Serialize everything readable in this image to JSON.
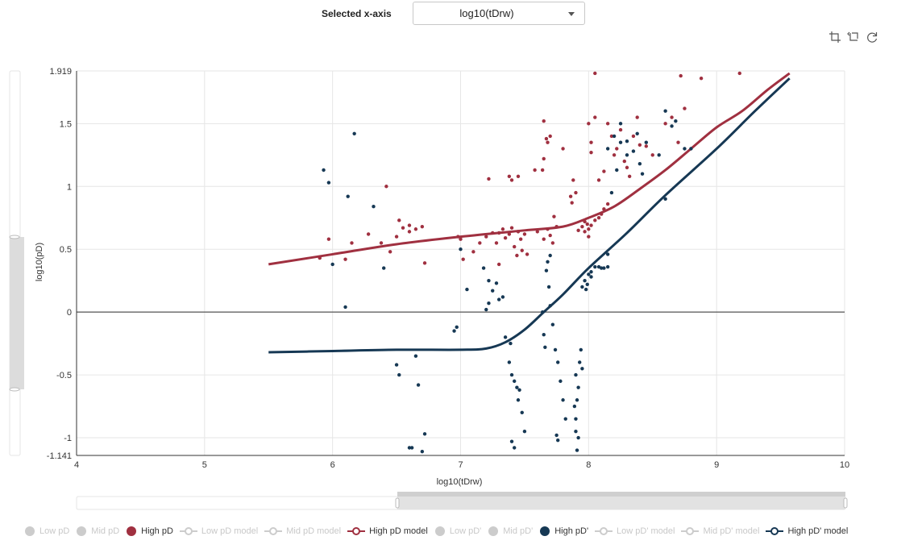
{
  "selector": {
    "label": "Selected x-axis",
    "value": "log10(tDrw)"
  },
  "toolbox": {
    "icons": [
      "data-zoom-icon",
      "zoom-reset-icon",
      "restore-icon"
    ]
  },
  "chart_data": {
    "type": "scatter",
    "xlabel": "log10(tDrw)",
    "ylabel": "log10(pD)",
    "xlim": [
      4,
      10
    ],
    "ylim": [
      -1.141,
      1.919
    ],
    "xticks": [
      "4",
      "5",
      "6",
      "7",
      "8",
      "9",
      "10"
    ],
    "yticks": [
      "1.919",
      "1.5",
      "1",
      "0.5",
      "0",
      "-0.5",
      "-1",
      "-1.141"
    ],
    "ytick_values": [
      1.919,
      1.5,
      1,
      0.5,
      0,
      -0.5,
      -1,
      -1.141
    ],
    "grid": true,
    "colors": {
      "high_pd": "#a03040",
      "high_pdp": "#163854",
      "inactive": "#cccccc"
    },
    "series": [
      {
        "name": "High pD",
        "kind": "scatter",
        "color": "#a03040",
        "points": [
          [
            5.9,
            0.43
          ],
          [
            5.97,
            0.58
          ],
          [
            6.1,
            0.42
          ],
          [
            6.15,
            0.55
          ],
          [
            6.28,
            0.62
          ],
          [
            6.38,
            0.55
          ],
          [
            6.42,
            1.0
          ],
          [
            6.45,
            0.48
          ],
          [
            6.5,
            0.6
          ],
          [
            6.52,
            0.73
          ],
          [
            6.55,
            0.67
          ],
          [
            6.6,
            0.69
          ],
          [
            6.65,
            0.66
          ],
          [
            6.7,
            0.68
          ],
          [
            6.72,
            0.39
          ],
          [
            6.6,
            0.64
          ],
          [
            6.98,
            0.6
          ],
          [
            7.0,
            0.58
          ],
          [
            7.02,
            0.42
          ],
          [
            7.1,
            0.48
          ],
          [
            7.15,
            0.55
          ],
          [
            7.2,
            0.6
          ],
          [
            7.25,
            0.63
          ],
          [
            7.22,
            1.06
          ],
          [
            7.28,
            0.55
          ],
          [
            7.3,
            0.63
          ],
          [
            7.33,
            0.66
          ],
          [
            7.35,
            0.59
          ],
          [
            7.38,
            0.62
          ],
          [
            7.4,
            0.67
          ],
          [
            7.42,
            0.52
          ],
          [
            7.45,
            0.64
          ],
          [
            7.47,
            0.58
          ],
          [
            7.5,
            0.62
          ],
          [
            7.52,
            0.46
          ],
          [
            7.4,
            1.05
          ],
          [
            7.38,
            1.08
          ],
          [
            7.44,
            0.45
          ],
          [
            7.3,
            0.38
          ],
          [
            7.48,
            0.49
          ],
          [
            7.45,
            1.08
          ],
          [
            7.6,
            0.64
          ],
          [
            7.65,
            0.58
          ],
          [
            7.68,
            0.66
          ],
          [
            7.7,
            0.61
          ],
          [
            7.72,
            0.55
          ],
          [
            7.75,
            0.68
          ],
          [
            7.65,
            1.52
          ],
          [
            7.7,
            1.4
          ],
          [
            7.68,
            1.35
          ],
          [
            7.67,
            1.38
          ],
          [
            7.73,
            0.76
          ],
          [
            7.65,
            1.22
          ],
          [
            7.64,
            1.13
          ],
          [
            7.58,
            1.13
          ],
          [
            7.8,
            1.3
          ],
          [
            7.87,
            0.87
          ],
          [
            7.9,
            0.95
          ],
          [
            7.88,
            1.05
          ],
          [
            7.86,
            0.92
          ],
          [
            7.92,
            0.65
          ],
          [
            7.95,
            0.68
          ],
          [
            7.97,
            0.72
          ],
          [
            8.0,
            0.66
          ],
          [
            8.02,
            0.69
          ],
          [
            8.05,
            0.73
          ],
          [
            8.08,
            0.75
          ],
          [
            8.1,
            0.78
          ],
          [
            8.12,
            0.82
          ],
          [
            8.15,
            0.86
          ],
          [
            8.0,
            1.5
          ],
          [
            8.02,
            1.35
          ],
          [
            8.05,
            1.55
          ],
          [
            8.08,
            1.05
          ],
          [
            8.12,
            1.12
          ],
          [
            8.15,
            1.5
          ],
          [
            8.18,
            1.4
          ],
          [
            8.2,
            1.25
          ],
          [
            8.22,
            1.3
          ],
          [
            8.25,
            1.45
          ],
          [
            8.28,
            1.2
          ],
          [
            8.3,
            1.15
          ],
          [
            8.32,
            1.08
          ],
          [
            8.35,
            1.4
          ],
          [
            8.38,
            1.55
          ],
          [
            8.4,
            1.33
          ],
          [
            8.45,
            1.32
          ],
          [
            8.5,
            1.25
          ],
          [
            8.6,
            1.5
          ],
          [
            8.65,
            1.55
          ],
          [
            8.7,
            1.35
          ],
          [
            8.75,
            1.62
          ],
          [
            8.72,
            1.88
          ],
          [
            8.88,
            1.86
          ],
          [
            9.18,
            1.9
          ],
          [
            8.05,
            1.9
          ],
          [
            8.02,
            1.27
          ],
          [
            8.0,
            0.6
          ],
          [
            7.97,
            0.64
          ],
          [
            7.99,
            0.7
          ]
        ]
      },
      {
        "name": "High pD' ",
        "kind": "scatter",
        "color": "#163854",
        "points": [
          [
            5.93,
            1.13
          ],
          [
            5.97,
            1.03
          ],
          [
            6.12,
            0.92
          ],
          [
            6.17,
            1.42
          ],
          [
            6.32,
            0.84
          ],
          [
            6.4,
            0.35
          ],
          [
            6.1,
            0.04
          ],
          [
            6.0,
            0.38
          ],
          [
            6.5,
            -0.42
          ],
          [
            6.52,
            -0.5
          ],
          [
            6.6,
            -1.08
          ],
          [
            6.62,
            -1.08
          ],
          [
            6.65,
            -0.35
          ],
          [
            6.67,
            -0.58
          ],
          [
            6.7,
            -1.11
          ],
          [
            6.72,
            -0.97
          ],
          [
            6.95,
            -0.15
          ],
          [
            6.97,
            -0.12
          ],
          [
            7.05,
            0.18
          ],
          [
            7.0,
            0.5
          ],
          [
            7.22,
            0.25
          ],
          [
            7.25,
            0.17
          ],
          [
            7.3,
            0.1
          ],
          [
            7.33,
            0.12
          ],
          [
            7.35,
            -0.2
          ],
          [
            7.38,
            -0.4
          ],
          [
            7.4,
            -0.5
          ],
          [
            7.42,
            -0.55
          ],
          [
            7.45,
            -0.7
          ],
          [
            7.48,
            -0.8
          ],
          [
            7.5,
            -0.95
          ],
          [
            7.4,
            -1.03
          ],
          [
            7.42,
            -1.08
          ],
          [
            7.2,
            0.02
          ],
          [
            7.22,
            0.07
          ],
          [
            7.18,
            0.35
          ],
          [
            7.28,
            0.23
          ],
          [
            7.44,
            -0.6
          ],
          [
            7.46,
            -0.62
          ],
          [
            7.39,
            -0.25
          ],
          [
            7.67,
            0.33
          ],
          [
            7.69,
            0.2
          ],
          [
            7.7,
            0.05
          ],
          [
            7.72,
            -0.1
          ],
          [
            7.74,
            -0.3
          ],
          [
            7.76,
            -0.4
          ],
          [
            7.78,
            -0.55
          ],
          [
            7.8,
            -0.7
          ],
          [
            7.82,
            -0.85
          ],
          [
            7.75,
            -0.98
          ],
          [
            7.76,
            -1.02
          ],
          [
            7.65,
            -0.18
          ],
          [
            7.68,
            0.4
          ],
          [
            7.7,
            0.45
          ],
          [
            7.64,
            0.0
          ],
          [
            7.66,
            -0.28
          ],
          [
            7.9,
            -0.5
          ],
          [
            7.91,
            -0.7
          ],
          [
            7.9,
            -0.85
          ],
          [
            7.92,
            -1.0
          ],
          [
            7.91,
            -1.1
          ],
          [
            7.93,
            -0.4
          ],
          [
            7.94,
            -0.3
          ],
          [
            7.92,
            -0.6
          ],
          [
            7.95,
            -0.45
          ],
          [
            7.9,
            -0.95
          ],
          [
            7.89,
            -0.75
          ],
          [
            7.95,
            0.2
          ],
          [
            7.97,
            0.25
          ],
          [
            8.0,
            0.3
          ],
          [
            8.02,
            0.32
          ],
          [
            8.05,
            0.36
          ],
          [
            8.08,
            0.36
          ],
          [
            8.1,
            0.35
          ],
          [
            8.12,
            0.35
          ],
          [
            8.15,
            0.36
          ],
          [
            7.98,
            0.18
          ],
          [
            8.15,
            1.3
          ],
          [
            8.2,
            1.4
          ],
          [
            8.25,
            1.35
          ],
          [
            8.3,
            1.25
          ],
          [
            8.35,
            1.28
          ],
          [
            8.38,
            1.42
          ],
          [
            8.4,
            1.18
          ],
          [
            8.42,
            1.1
          ],
          [
            8.45,
            1.35
          ],
          [
            8.55,
            1.25
          ],
          [
            8.6,
            1.6
          ],
          [
            8.65,
            1.48
          ],
          [
            8.68,
            1.52
          ],
          [
            8.75,
            1.3
          ],
          [
            8.8,
            1.3
          ],
          [
            8.6,
            0.9
          ],
          [
            8.25,
            1.5
          ],
          [
            8.3,
            1.36
          ],
          [
            8.22,
            1.13
          ],
          [
            8.18,
            0.95
          ],
          [
            8.02,
            0.28
          ],
          [
            7.99,
            0.22
          ],
          [
            8.15,
            0.46
          ]
        ]
      },
      {
        "name": "High pD  model",
        "kind": "line",
        "color": "#a03040",
        "points": [
          [
            5.5,
            0.38
          ],
          [
            6.0,
            0.46
          ],
          [
            6.5,
            0.54
          ],
          [
            7.0,
            0.6
          ],
          [
            7.5,
            0.65
          ],
          [
            7.8,
            0.68
          ],
          [
            8.0,
            0.75
          ],
          [
            8.2,
            0.84
          ],
          [
            8.4,
            0.98
          ],
          [
            8.6,
            1.13
          ],
          [
            8.8,
            1.3
          ],
          [
            9.0,
            1.47
          ],
          [
            9.2,
            1.6
          ],
          [
            9.4,
            1.77
          ],
          [
            9.57,
            1.9
          ]
        ]
      },
      {
        "name": "High pD'  model",
        "kind": "line",
        "color": "#163854",
        "points": [
          [
            5.5,
            -0.32
          ],
          [
            6.0,
            -0.31
          ],
          [
            6.5,
            -0.3
          ],
          [
            7.0,
            -0.3
          ],
          [
            7.2,
            -0.29
          ],
          [
            7.35,
            -0.24
          ],
          [
            7.5,
            -0.14
          ],
          [
            7.65,
            0.0
          ],
          [
            7.8,
            0.14
          ],
          [
            8.0,
            0.35
          ],
          [
            8.3,
            0.63
          ],
          [
            8.6,
            0.93
          ],
          [
            9.0,
            1.3
          ],
          [
            9.3,
            1.6
          ],
          [
            9.57,
            1.86
          ]
        ]
      }
    ]
  },
  "legend": {
    "items": [
      {
        "label": "Low pD",
        "type": "dot",
        "active": false
      },
      {
        "label": "Mid pD",
        "type": "dot",
        "active": false
      },
      {
        "label": "High pD",
        "type": "dot",
        "active": true,
        "color": "#a03040"
      },
      {
        "label": "Low pD  model",
        "type": "line",
        "active": false
      },
      {
        "label": "Mid pD  model",
        "type": "line",
        "active": false
      },
      {
        "label": "High pD  model",
        "type": "line",
        "active": true,
        "color": "#a03040"
      },
      {
        "label": "Low pD'",
        "type": "dot",
        "active": false
      },
      {
        "label": "Mid pD'",
        "type": "dot",
        "active": false
      },
      {
        "label": "High pD'",
        "type": "dot",
        "active": true,
        "color": "#163854"
      },
      {
        "label": "Low pD'  model",
        "type": "line",
        "active": false
      },
      {
        "label": "Mid pD'  model",
        "type": "line",
        "active": false
      },
      {
        "label": "High pD'  model",
        "type": "line",
        "active": true,
        "color": "#163854"
      }
    ]
  }
}
